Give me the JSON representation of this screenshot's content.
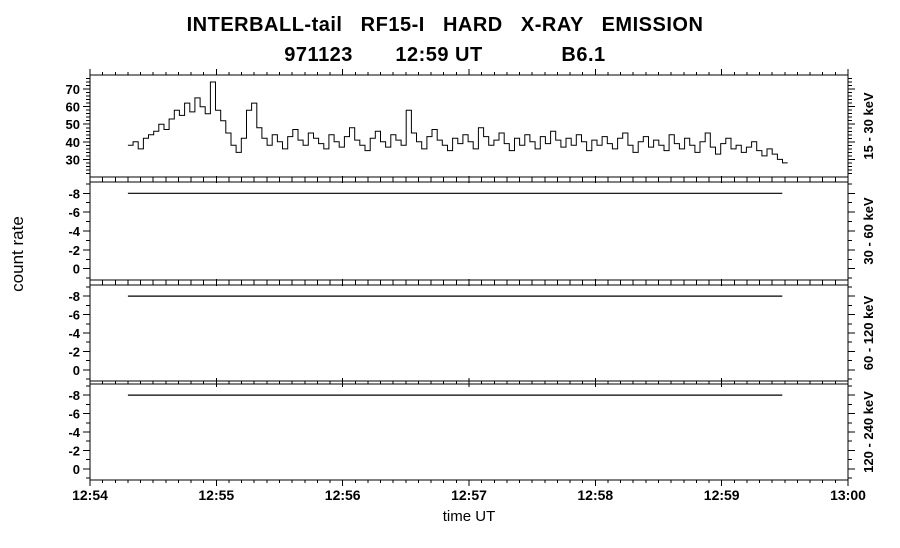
{
  "header": {
    "title_line1": "INTERBALL-tail   RF15-I   HARD   X-RAY   EMISSION",
    "title_line2": "971123       12:59 UT             B6.1"
  },
  "axes": {
    "xlabel": "time UT",
    "ylabel": "count rate",
    "x_range": [
      54,
      60
    ],
    "x_tick_labels": [
      "12:54",
      "12:55",
      "12:56",
      "12:57",
      "12:58",
      "12:59",
      "13:00"
    ]
  },
  "chart_data": [
    {
      "type": "step-line",
      "band_label": "15 - 30 keV",
      "ylim": [
        20,
        78
      ],
      "yticks": [
        30,
        40,
        50,
        60,
        70
      ],
      "y_minor": 2,
      "x_start": 54.3,
      "x_step": 0.0408,
      "values": [
        38,
        40,
        36,
        42,
        44,
        46,
        50,
        47,
        53,
        58,
        55,
        62,
        57,
        65,
        60,
        56,
        74,
        58,
        52,
        45,
        38,
        34,
        42,
        58,
        62,
        48,
        42,
        38,
        44,
        40,
        36,
        43,
        47,
        41,
        38,
        45,
        42,
        39,
        36,
        44,
        40,
        37,
        43,
        48,
        41,
        38,
        35,
        42,
        46,
        40,
        37,
        44,
        41,
        38,
        58,
        45,
        40,
        36,
        43,
        47,
        41,
        38,
        35,
        42,
        39,
        44,
        40,
        36,
        48,
        43,
        38,
        41,
        45,
        39,
        35,
        42,
        38,
        44,
        40,
        36,
        43,
        39,
        46,
        41,
        37,
        42,
        38,
        44,
        40,
        35,
        41,
        38,
        43,
        39,
        36,
        42,
        45,
        38,
        34,
        40,
        43,
        37,
        41,
        38,
        35,
        44,
        39,
        36,
        42,
        38,
        34,
        40,
        45,
        37,
        33,
        39,
        42,
        36,
        38,
        34,
        37,
        40,
        35,
        32,
        36,
        33,
        30,
        28
      ]
    },
    {
      "type": "line",
      "band_label": "30 - 60 keV",
      "ylim": [
        1.2,
        -9.2
      ],
      "yticks": [
        -8,
        -6,
        -4,
        -2,
        0
      ],
      "y_minor": 1,
      "x": [
        54.3,
        59.48
      ],
      "y": [
        -8,
        -8
      ]
    },
    {
      "type": "line",
      "band_label": "60 - 120 keV",
      "ylim": [
        1.2,
        -9.2
      ],
      "yticks": [
        -8,
        -6,
        -4,
        -2,
        0
      ],
      "y_minor": 1,
      "x": [
        54.3,
        59.48
      ],
      "y": [
        -8,
        -8
      ]
    },
    {
      "type": "line",
      "band_label": "120 - 240 keV",
      "ylim": [
        1.2,
        -9.2
      ],
      "yticks": [
        -8,
        -6,
        -4,
        -2,
        0
      ],
      "y_minor": 1,
      "x": [
        54.3,
        59.48
      ],
      "y": [
        -8,
        -8
      ]
    }
  ]
}
